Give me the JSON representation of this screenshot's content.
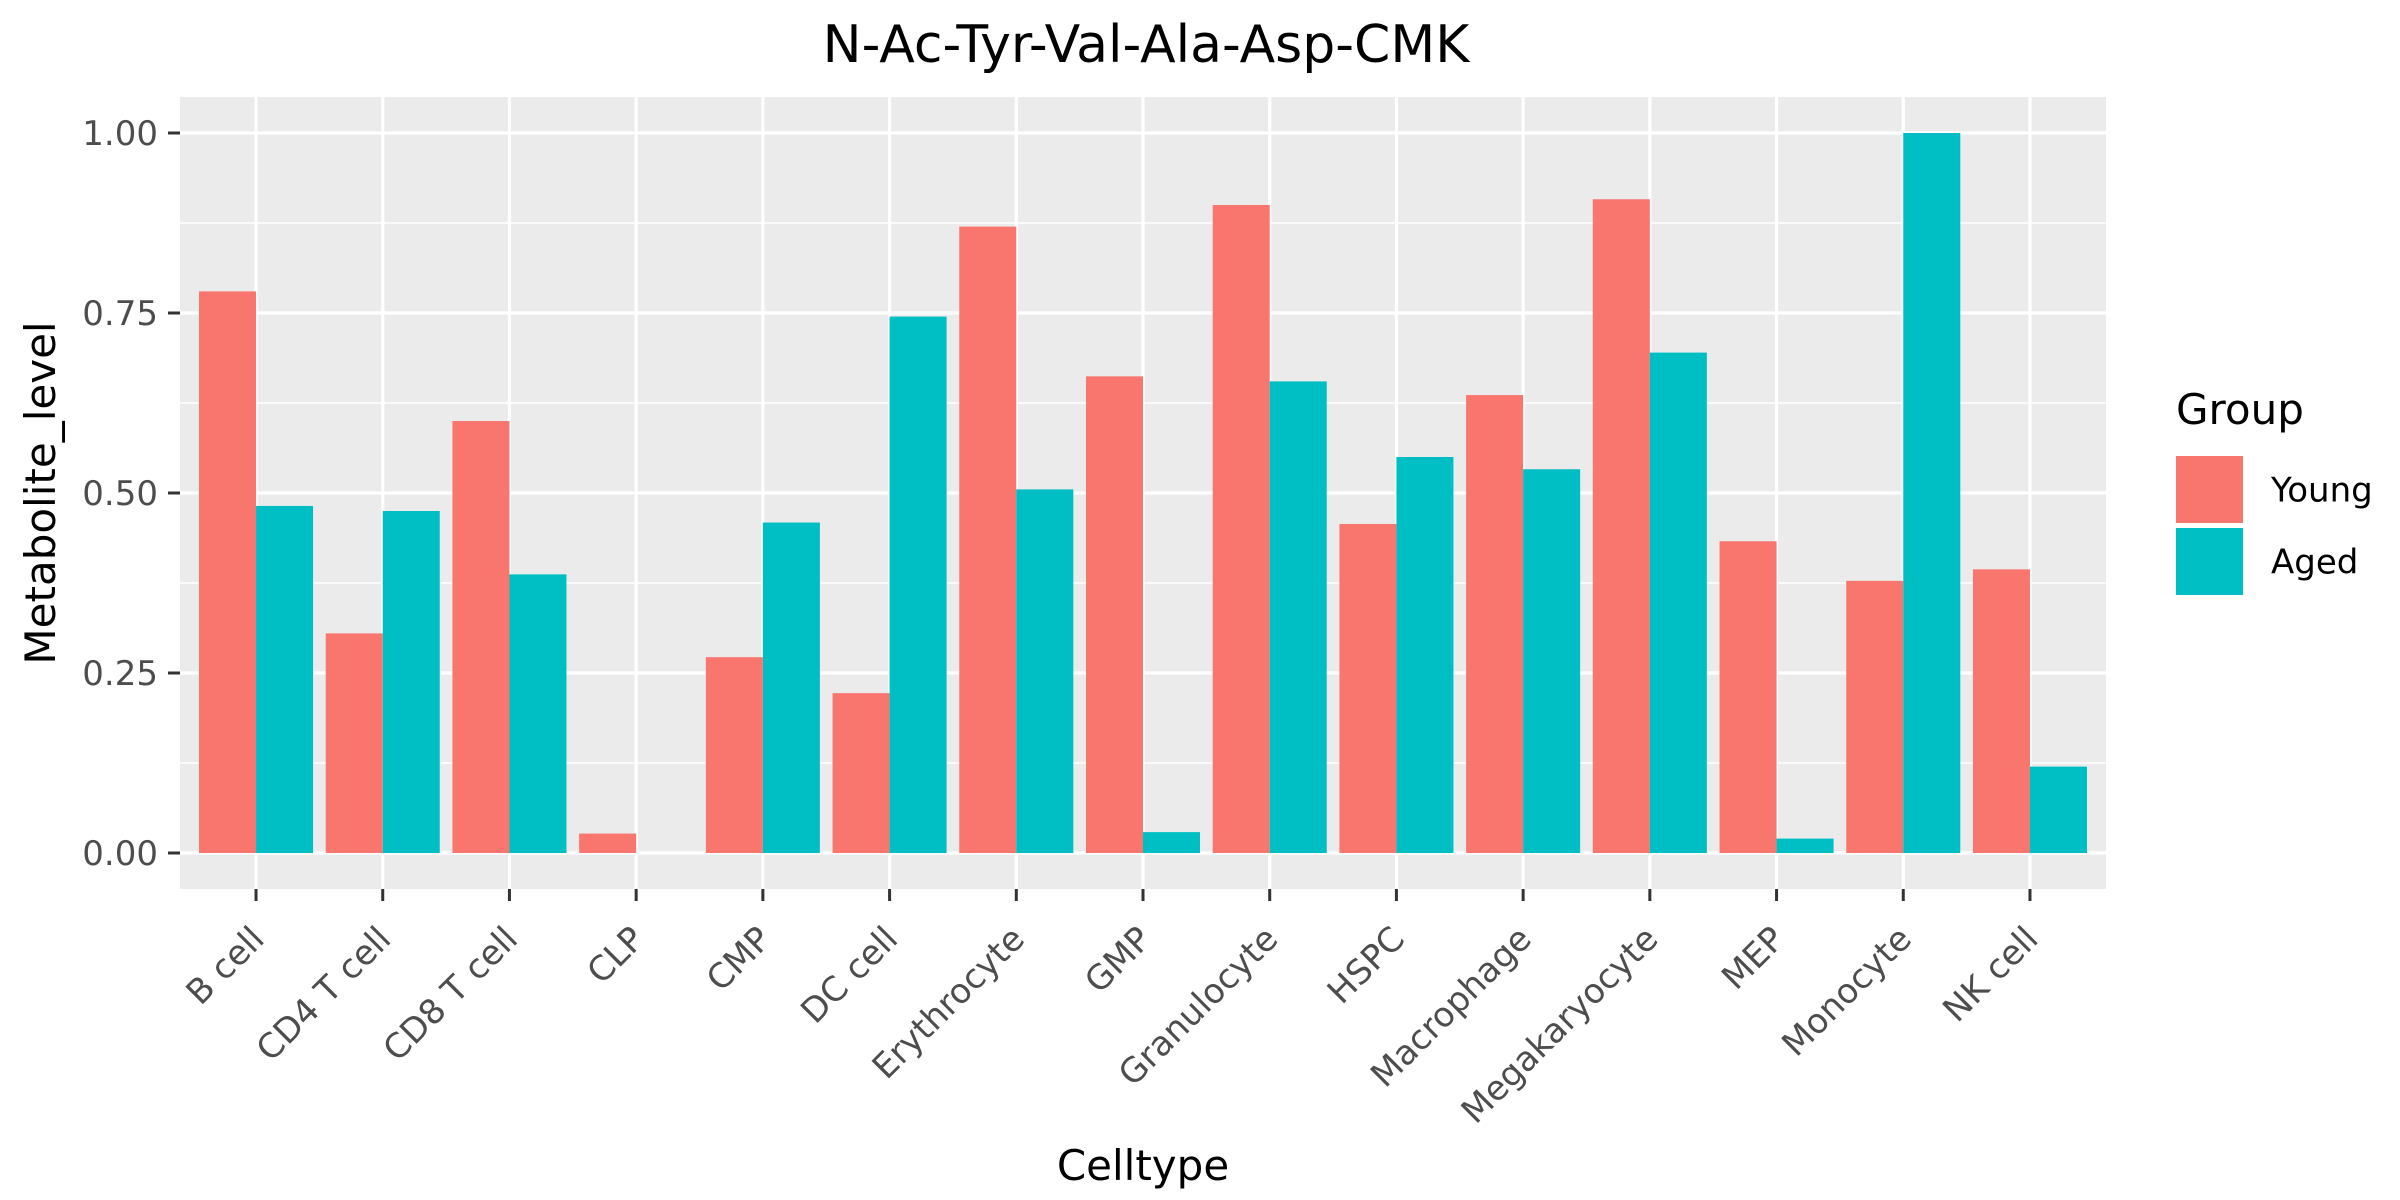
{
  "chart_data": {
    "type": "bar",
    "title": "N-Ac-Tyr-Val-Ala-Asp-CMK",
    "xlabel": "Celltype",
    "ylabel": "Metabolite_level",
    "ylim": [
      -0.05,
      1.05
    ],
    "yticks": [
      0.0,
      0.25,
      0.5,
      0.75,
      1.0
    ],
    "ytick_labels": [
      "0.00",
      "0.25",
      "0.50",
      "0.75",
      "1.00"
    ],
    "grid": true,
    "legend_position": "right",
    "legend_title": "Group",
    "categories": [
      "B cell",
      "CD4 T cell",
      "CD8 T cell",
      "CLP",
      "CMP",
      "DC cell",
      "Erythrocyte",
      "GMP",
      "Granulocyte",
      "HSPC",
      "Macrophage",
      "Megakaryocyte",
      "MEP",
      "Monocyte",
      "NK cell"
    ],
    "series": [
      {
        "name": "Young",
        "color": "#F8766D",
        "values": [
          0.78,
          0.305,
          0.6,
          0.027,
          0.272,
          0.222,
          0.87,
          0.662,
          0.9,
          0.457,
          0.636,
          0.908,
          0.433,
          0.378,
          0.394
        ]
      },
      {
        "name": "Aged",
        "color": "#00BFC4",
        "values": [
          0.482,
          0.475,
          0.387,
          0.0,
          0.459,
          0.745,
          0.505,
          0.029,
          0.655,
          0.55,
          0.533,
          0.695,
          0.02,
          1.0,
          0.12
        ]
      }
    ]
  }
}
